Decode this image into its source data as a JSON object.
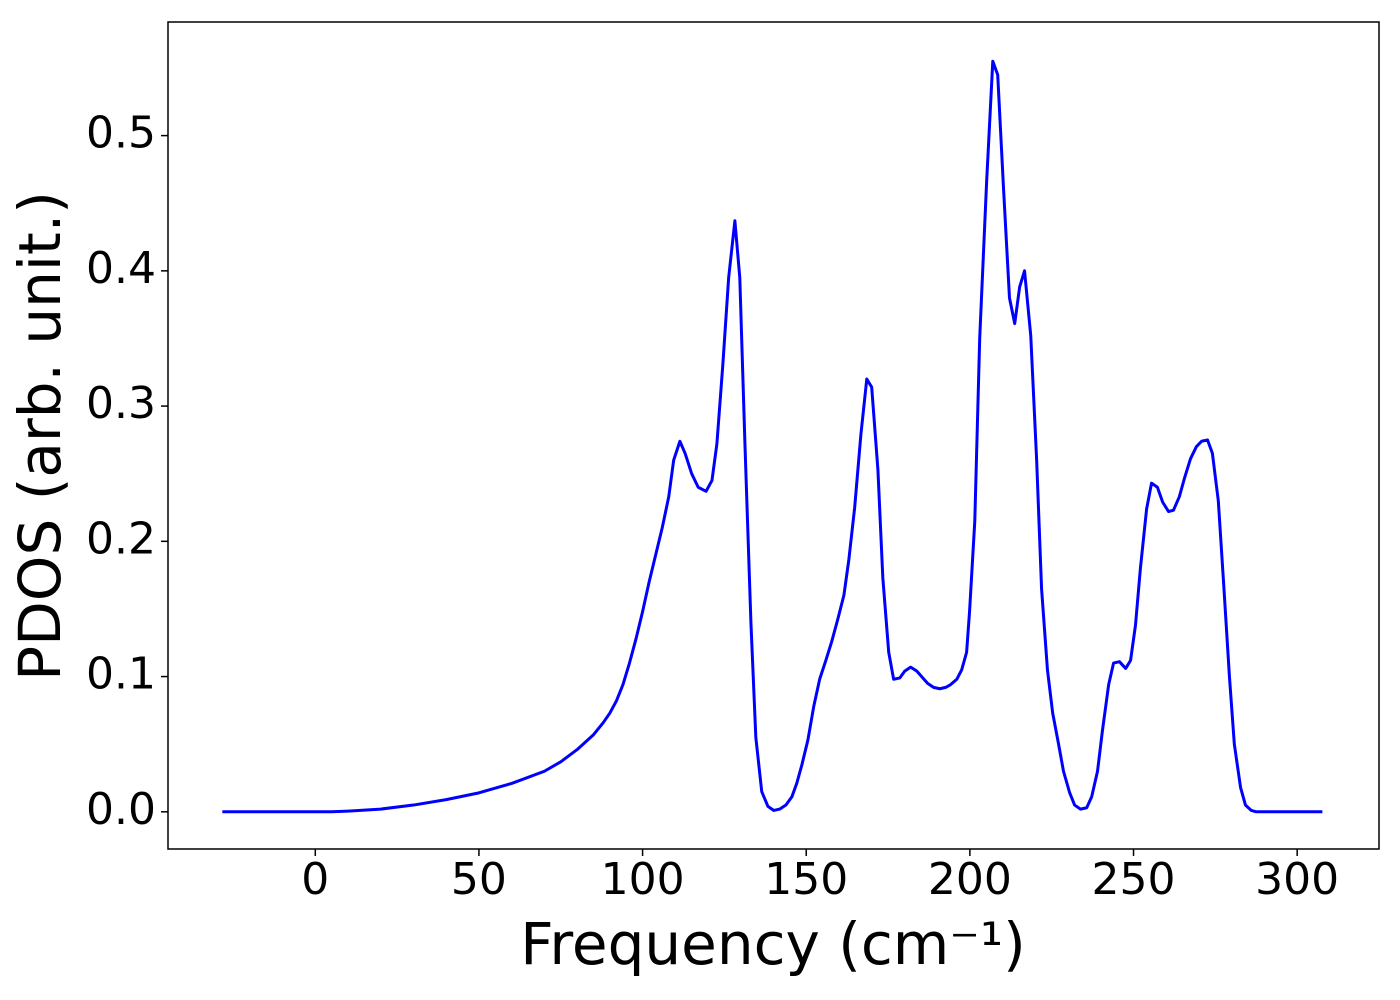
{
  "chart_data": {
    "type": "line",
    "xlabel": "Frequency (cm⁻¹)",
    "ylabel": "PDOS (arb. unit.)",
    "xlim": [
      -45,
      325
    ],
    "ylim": [
      -0.0275,
      0.584
    ],
    "xticks": [
      0,
      50,
      100,
      150,
      200,
      250,
      300
    ],
    "yticks": [
      {
        "value": 0,
        "label": "0.0"
      },
      0.1,
      0.2,
      0.3,
      0.4,
      0.5
    ],
    "grid": false,
    "series": [
      {
        "color": "#0000ff",
        "x": [
          -28.4,
          0,
          5,
          10,
          20,
          30,
          40,
          50,
          60,
          70,
          75,
          80,
          85,
          88,
          90,
          92,
          94,
          96,
          98,
          100,
          102,
          104,
          106,
          108,
          109.5,
          111.4,
          113,
          115,
          117,
          119.4,
          121.2,
          122.7,
          124.5,
          126.3,
          128.2,
          129.7,
          131.3,
          133.1,
          134.6,
          136.4,
          138.3,
          140.1,
          141.9,
          143.8,
          145.6,
          147.1,
          148.7,
          150.5,
          152.3,
          154.1,
          156.0,
          157.8,
          159.6,
          161.5,
          163.0,
          164.8,
          166.7,
          168.5,
          170.0,
          171.9,
          173.4,
          175.2,
          176.7,
          178.6,
          180.1,
          181.9,
          183.8,
          185.6,
          187.1,
          188.9,
          190.8,
          192.6,
          194.1,
          196.0,
          197.5,
          199.0,
          199.9,
          201.5,
          203.0,
          205.1,
          207.0,
          208.5,
          210.3,
          212.1,
          213.7,
          215.2,
          216.7,
          218.6,
          220.4,
          221.9,
          223.7,
          225.3,
          227.1,
          228.6,
          230.5,
          232.0,
          233.8,
          235.7,
          237.2,
          239.0,
          240.5,
          242.4,
          243.9,
          245.7,
          247.6,
          249.1,
          250.6,
          252.1,
          254.0,
          255.5,
          257.3,
          258.9,
          260.7,
          262.2,
          264.0,
          265.6,
          267.4,
          269.2,
          270.8,
          272.6,
          274.1,
          275.9,
          277.5,
          279.3,
          280.8,
          282.7,
          284.2,
          286.0,
          287.5,
          307.7
        ],
        "values": [
          0,
          0,
          0,
          0.0005,
          0.002,
          0.005,
          0.009,
          0.014,
          0.021,
          0.03,
          0.037,
          0.046,
          0.057,
          0.066,
          0.073,
          0.082,
          0.094,
          0.11,
          0.128,
          0.148,
          0.17,
          0.19,
          0.21,
          0.233,
          0.26,
          0.274,
          0.265,
          0.25,
          0.24,
          0.237,
          0.245,
          0.272,
          0.33,
          0.395,
          0.437,
          0.395,
          0.27,
          0.14,
          0.055,
          0.015,
          0.004,
          0.001,
          0.002,
          0.005,
          0.011,
          0.021,
          0.035,
          0.053,
          0.078,
          0.098,
          0.112,
          0.126,
          0.142,
          0.16,
          0.186,
          0.225,
          0.279,
          0.32,
          0.314,
          0.253,
          0.173,
          0.118,
          0.098,
          0.099,
          0.104,
          0.107,
          0.104,
          0.099,
          0.095,
          0.092,
          0.091,
          0.092,
          0.094,
          0.098,
          0.105,
          0.118,
          0.148,
          0.215,
          0.35,
          0.465,
          0.555,
          0.545,
          0.46,
          0.38,
          0.361,
          0.388,
          0.4,
          0.352,
          0.26,
          0.165,
          0.105,
          0.073,
          0.05,
          0.03,
          0.014,
          0.005,
          0.002,
          0.003,
          0.011,
          0.03,
          0.06,
          0.094,
          0.11,
          0.111,
          0.106,
          0.112,
          0.138,
          0.18,
          0.224,
          0.243,
          0.24,
          0.229,
          0.222,
          0.223,
          0.233,
          0.247,
          0.261,
          0.27,
          0.274,
          0.275,
          0.265,
          0.23,
          0.17,
          0.1,
          0.05,
          0.018,
          0.005,
          0.001,
          0,
          0
        ]
      }
    ]
  }
}
